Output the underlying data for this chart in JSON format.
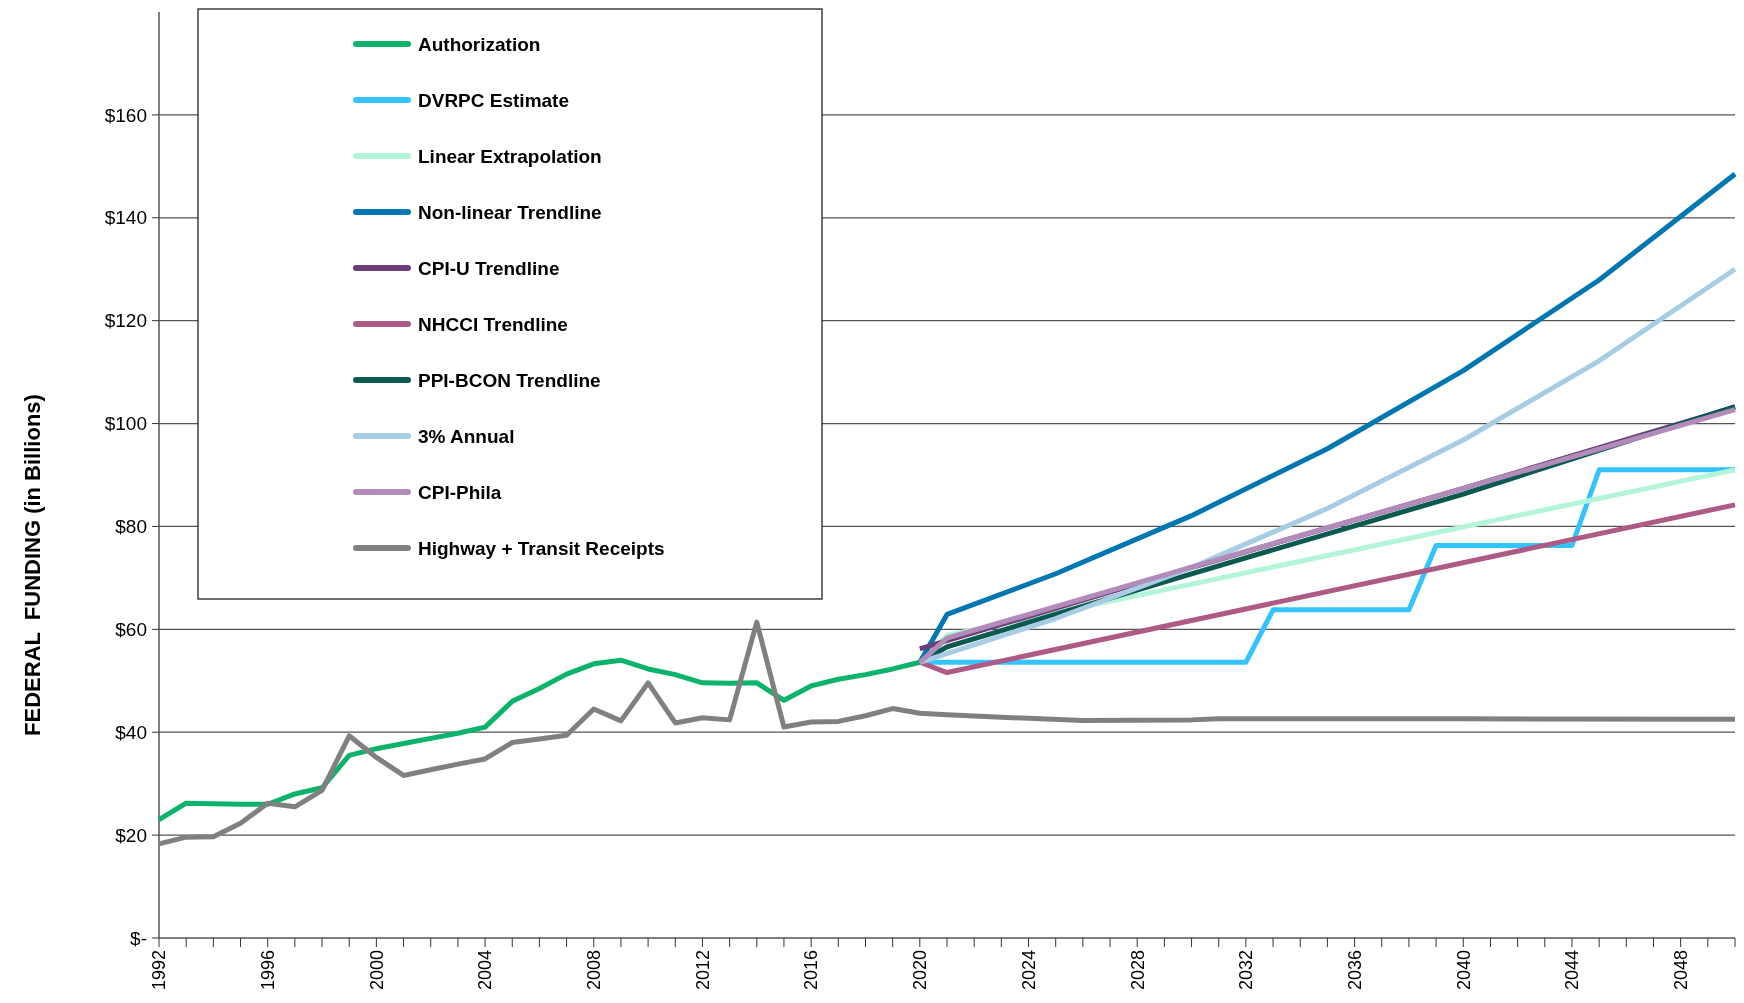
{
  "chart_data": {
    "type": "line",
    "ylabel": "FEDERAL  FUNDING (in Billions)",
    "xlim": [
      1992,
      2050
    ],
    "ylim": [
      0,
      180
    ],
    "xticks": [
      1992,
      {
        "value": 1993,
        "label": null
      },
      {
        "value": 1994,
        "label": null
      },
      {
        "value": 1995,
        "label": null
      },
      1996,
      {
        "value": 1997,
        "label": null
      },
      {
        "value": 1998,
        "label": null
      },
      {
        "value": 1999,
        "label": null
      },
      2000,
      {
        "value": 2001,
        "label": null
      },
      {
        "value": 2002,
        "label": null
      },
      {
        "value": 2003,
        "label": null
      },
      2004,
      {
        "value": 2005,
        "label": null
      },
      {
        "value": 2006,
        "label": null
      },
      {
        "value": 2007,
        "label": null
      },
      2008,
      {
        "value": 2009,
        "label": null
      },
      {
        "value": 2010,
        "label": null
      },
      {
        "value": 2011,
        "label": null
      },
      2012,
      {
        "value": 2013,
        "label": null
      },
      {
        "value": 2014,
        "label": null
      },
      {
        "value": 2015,
        "label": null
      },
      2016,
      {
        "value": 2017,
        "label": null
      },
      {
        "value": 2018,
        "label": null
      },
      {
        "value": 2019,
        "label": null
      },
      2020,
      {
        "value": 2021,
        "label": null
      },
      {
        "value": 2022,
        "label": null
      },
      {
        "value": 2023,
        "label": null
      },
      2024,
      {
        "value": 2025,
        "label": null
      },
      {
        "value": 2026,
        "label": null
      },
      {
        "value": 2027,
        "label": null
      },
      2028,
      {
        "value": 2029,
        "label": null
      },
      {
        "value": 2030,
        "label": null
      },
      {
        "value": 2031,
        "label": null
      },
      2032,
      {
        "value": 2033,
        "label": null
      },
      {
        "value": 2034,
        "label": null
      },
      {
        "value": 2035,
        "label": null
      },
      2036,
      {
        "value": 2037,
        "label": null
      },
      {
        "value": 2038,
        "label": null
      },
      {
        "value": 2039,
        "label": null
      },
      2040,
      {
        "value": 2041,
        "label": null
      },
      {
        "value": 2042,
        "label": null
      },
      {
        "value": 2043,
        "label": null
      },
      2044,
      {
        "value": 2045,
        "label": null
      },
      {
        "value": 2046,
        "label": null
      },
      {
        "value": 2047,
        "label": null
      },
      2048,
      {
        "value": 2049,
        "label": null
      },
      {
        "value": 2050,
        "label": null
      }
    ],
    "yticks": [
      {
        "value": 0,
        "label": "$-"
      },
      {
        "value": 20,
        "label": "$20"
      },
      {
        "value": 40,
        "label": "$40"
      },
      {
        "value": 60,
        "label": "$60"
      },
      {
        "value": 80,
        "label": "$80"
      },
      {
        "value": 100,
        "label": "$100"
      },
      {
        "value": 120,
        "label": "$120"
      },
      {
        "value": 140,
        "label": "$140"
      },
      {
        "value": 160,
        "label": "$160"
      }
    ],
    "grid": "y",
    "legend": "top left",
    "line_style": "solid",
    "marker": "none",
    "series": [
      {
        "name": "Authorization",
        "color": "#0bb36b",
        "x": [
          1992,
          1993,
          1994,
          1995,
          1996,
          1997,
          1998,
          1999,
          2000,
          2001,
          2002,
          2003,
          2004,
          2005,
          2006,
          2007,
          2008,
          2009,
          2010,
          2011,
          2012,
          2013,
          2014,
          2015,
          2016,
          2017,
          2018,
          2019,
          2020
        ],
        "values": [
          23,
          26.2,
          26.1,
          26,
          26,
          28,
          29.2,
          35.5,
          36.8,
          37.8,
          38.8,
          39.8,
          41,
          46,
          48.5,
          51.3,
          53.3,
          54,
          52.3,
          51.2,
          49.6,
          49.5,
          49.6,
          46.2,
          49,
          50.3,
          51.2,
          52.3,
          53.6
        ]
      },
      {
        "name": "DVRPC Estimate",
        "color": "#33c4ff",
        "x": [
          2020,
          2032,
          2033,
          2038,
          2039,
          2044,
          2045,
          2050
        ],
        "values": [
          53.6,
          53.6,
          63.8,
          63.8,
          76.3,
          76.3,
          91,
          91
        ]
      },
      {
        "name": "Linear Extrapolation",
        "color": "#b3f5d9",
        "x": [
          2020,
          2021,
          2050
        ],
        "values": [
          53.6,
          58.8,
          91
        ]
      },
      {
        "name": "Non-linear Trendline",
        "color": "#0077b0",
        "x": [
          2020,
          2021,
          2025,
          2030,
          2035,
          2040,
          2045,
          2050
        ],
        "values": [
          53.6,
          62.9,
          70.8,
          82.1,
          95.1,
          110.3,
          127.9,
          148.5
        ]
      },
      {
        "name": "CPI-U Trendline",
        "color": "#6b3f78",
        "x": [
          2020,
          2021,
          2030,
          2040,
          2050
        ],
        "values": [
          56.2,
          57.8,
          72,
          87.4,
          103.2
        ]
      },
      {
        "name": "NHCCI Trendline",
        "color": "#ad5a86",
        "x": [
          2020,
          2021,
          2050
        ],
        "values": [
          53.6,
          51.6,
          84.2
        ]
      },
      {
        "name": "PPI-BCON Trendline",
        "color": "#0a5a50",
        "x": [
          2020,
          2021,
          2030,
          2040,
          2050
        ],
        "values": [
          53.6,
          56.6,
          70.8,
          86.3,
          103.3
        ]
      },
      {
        "name": "3% Annual",
        "color": "#a6cde3",
        "x": [
          2020,
          2025,
          2030,
          2035,
          2040,
          2045,
          2050
        ],
        "values": [
          53.6,
          62.1,
          72,
          83.5,
          96.8,
          112.2,
          130
        ]
      },
      {
        "name": "CPI-Phila",
        "color": "#b38bbb",
        "x": [
          2020,
          2021,
          2030,
          2040,
          2050
        ],
        "values": [
          53.6,
          58.3,
          72.1,
          87.4,
          102.7
        ]
      },
      {
        "name": "Highway + Transit Receipts",
        "color": "#808080",
        "x": [
          1992,
          1993,
          1994,
          1995,
          1996,
          1997,
          1998,
          1999,
          2000,
          2001,
          2002,
          2003,
          2004,
          2005,
          2006,
          2007,
          2008,
          2009,
          2010,
          2011,
          2012,
          2013,
          2014,
          2015,
          2016,
          2017,
          2018,
          2019,
          2020,
          2021,
          2023,
          2026,
          2030,
          2031,
          2040,
          2050
        ],
        "values": [
          18.3,
          19.6,
          19.7,
          22.3,
          26.2,
          25.5,
          28.7,
          39.3,
          35.1,
          31.6,
          32.7,
          33.8,
          34.8,
          38,
          38.7,
          39.4,
          44.5,
          42.2,
          49.6,
          41.8,
          42.8,
          42.4,
          61.4,
          41,
          42,
          42.1,
          43.2,
          44.6,
          43.7,
          43.4,
          42.9,
          42.3,
          42.4,
          42.6,
          42.6,
          42.5
        ]
      }
    ]
  }
}
